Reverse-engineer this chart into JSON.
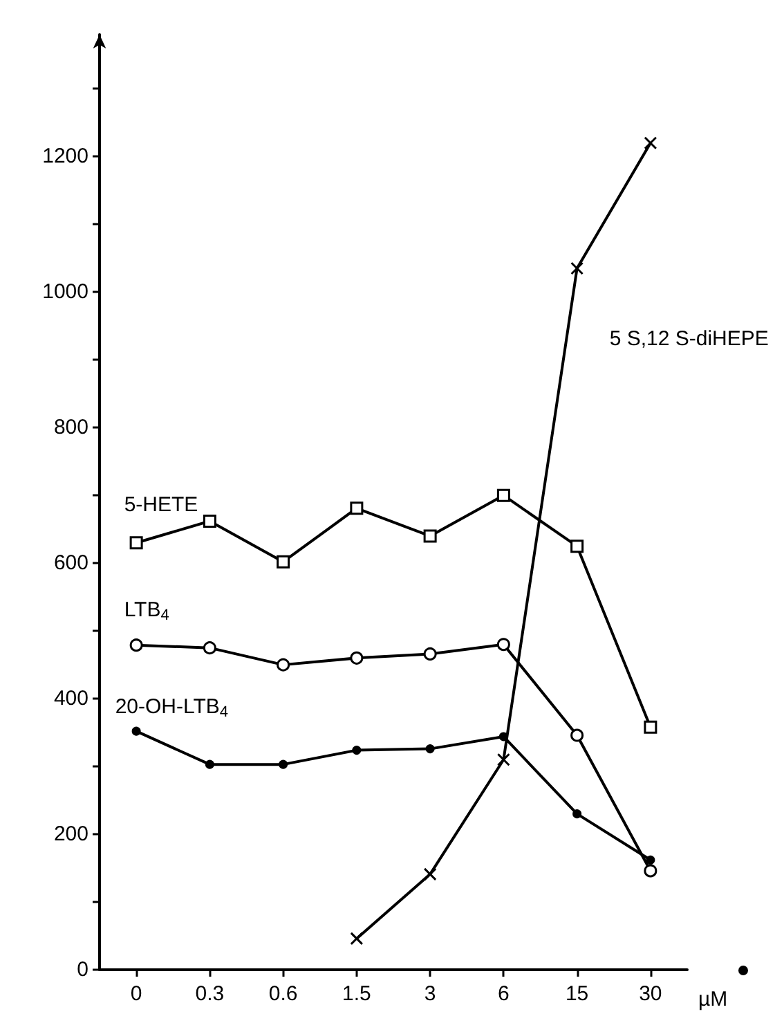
{
  "chart_data": {
    "type": "line",
    "xlabel": "µM",
    "categories": [
      "0",
      "0.3",
      "0.6",
      "1.5",
      "3",
      "6",
      "15",
      "30"
    ],
    "series": [
      {
        "name": "5-HETE",
        "color": "#000000",
        "marker": "square",
        "values": [
          630,
          662,
          602,
          681,
          640,
          700,
          625,
          358
        ]
      },
      {
        "name": "LTB$_{4}$",
        "color": "#000000",
        "marker": "circle",
        "values": [
          479,
          475,
          450,
          460,
          466,
          480,
          346,
          146
        ]
      },
      {
        "name": "20-OH-LTB$_{4}$",
        "color": "#000000",
        "marker": "dot",
        "values": [
          352,
          303,
          303,
          324,
          326,
          344,
          230,
          162
        ]
      },
      {
        "name": "5 S,12 S-diHEPE",
        "color": "#000000",
        "marker": "cross",
        "values": [
          null,
          null,
          null,
          46,
          141,
          310,
          1035,
          1220
        ]
      }
    ],
    "ylim": [
      0,
      1380
    ],
    "yticks": [
      0,
      {
        "value": 100,
        "label": null
      },
      200,
      {
        "value": 300,
        "label": null
      },
      400,
      {
        "value": 500,
        "label": null
      },
      600,
      {
        "value": 700,
        "label": null
      },
      800,
      {
        "value": 900,
        "label": null
      },
      1000,
      {
        "value": 1100,
        "label": null
      },
      1200,
      {
        "value": 1300,
        "label": null
      }
    ],
    "grid": false,
    "legend": false
  }
}
